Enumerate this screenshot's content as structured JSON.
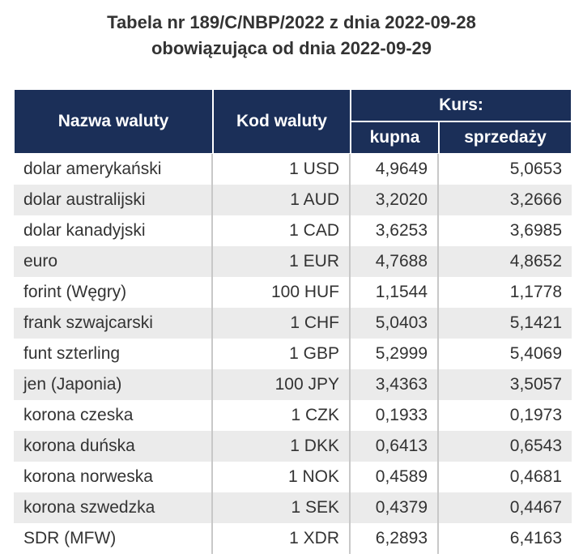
{
  "title": {
    "line1": "Tabela nr 189/C/NBP/2022 z dnia 2022-09-28",
    "line2": "obowiązująca od dnia 2022-09-29"
  },
  "headers": {
    "name": "Nazwa waluty",
    "code": "Kod waluty",
    "rate": "Kurs:",
    "buy": "kupna",
    "sell": "sprzedaży"
  },
  "colors": {
    "header_bg": "#1b2f58",
    "alt_row": "#ebebeb"
  },
  "rows": [
    {
      "name": "dolar amerykański",
      "code": "1 USD",
      "buy": "4,9649",
      "sell": "5,0653"
    },
    {
      "name": "dolar australijski",
      "code": "1 AUD",
      "buy": "3,2020",
      "sell": "3,2666"
    },
    {
      "name": "dolar kanadyjski",
      "code": "1 CAD",
      "buy": "3,6253",
      "sell": "3,6985"
    },
    {
      "name": "euro",
      "code": "1 EUR",
      "buy": "4,7688",
      "sell": "4,8652"
    },
    {
      "name": "forint (Węgry)",
      "code": "100 HUF",
      "buy": "1,1544",
      "sell": "1,1778"
    },
    {
      "name": "frank szwajcarski",
      "code": "1 CHF",
      "buy": "5,0403",
      "sell": "5,1421"
    },
    {
      "name": "funt szterling",
      "code": "1 GBP",
      "buy": "5,2999",
      "sell": "5,4069"
    },
    {
      "name": "jen (Japonia)",
      "code": "100 JPY",
      "buy": "3,4363",
      "sell": "3,5057"
    },
    {
      "name": "korona czeska",
      "code": "1 CZK",
      "buy": "0,1933",
      "sell": "0,1973"
    },
    {
      "name": "korona duńska",
      "code": "1 DKK",
      "buy": "0,6413",
      "sell": "0,6543"
    },
    {
      "name": "korona norweska",
      "code": "1 NOK",
      "buy": "0,4589",
      "sell": "0,4681"
    },
    {
      "name": "korona szwedzka",
      "code": "1 SEK",
      "buy": "0,4379",
      "sell": "0,4467"
    },
    {
      "name": "SDR (MFW)",
      "code": "1 XDR",
      "buy": "6,2893",
      "sell": "6,4163"
    }
  ]
}
